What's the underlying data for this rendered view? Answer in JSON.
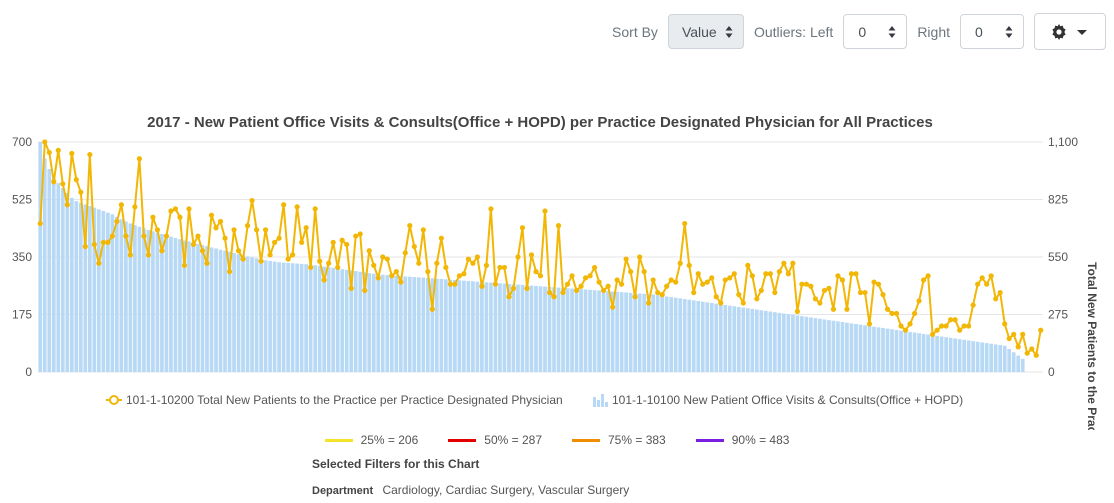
{
  "toolbar": {
    "sort_label": "Sort By",
    "sort_value": "Value",
    "outliers_left_label": "Outliers: Left",
    "outliers_left_value": "0",
    "right_label": "Right",
    "right_value": "0",
    "settings_icon": "gear-icon",
    "settings_caret_icon": "caret-down-icon"
  },
  "colors": {
    "bar": "#b8d9f5",
    "line": "#f2b705",
    "p25": "#f5e22a",
    "p50": "#e50000",
    "p75": "#f08c00",
    "p90": "#7a1fe0"
  },
  "chart_data": {
    "type": "bar+line",
    "title": "2017 - New Patient Office Visits & Consults(Office + HOPD) per Practice Designated Physician for All Practices",
    "y_left": {
      "ticks": [
        "0",
        "175",
        "350",
        "525",
        "700"
      ],
      "range": [
        0,
        700
      ]
    },
    "y_right": {
      "ticks": [
        "0",
        "275",
        "550",
        "825",
        "1,100"
      ],
      "range": [
        0,
        1100
      ],
      "title": "Total New Patients to the Practice"
    },
    "legend": [
      {
        "name": "101-1-10200 Total New Patients to the Practice per Practice Designated Physician",
        "kind": "line"
      },
      {
        "name": "101-1-10100 New Patient Office Visits & Consults(Office + HOPD)",
        "kind": "bar"
      }
    ],
    "series": [
      {
        "name": "101-1-10100 New Patient Office Visits & Consults(Office + HOPD)",
        "axis": "left",
        "kind": "bar",
        "values": [
          700,
          650,
          618,
          590,
          575,
          560,
          545,
          530,
          520,
          515,
          510,
          505,
          500,
          495,
          490,
          485,
          480,
          472,
          465,
          458,
          452,
          447,
          442,
          437,
          432,
          428,
          424,
          420,
          416,
          412,
          408,
          404,
          400,
          397,
          393,
          390,
          386,
          383,
          379,
          376,
          372,
          369,
          366,
          362,
          359,
          356,
          352,
          349,
          346,
          343,
          340,
          338,
          336,
          334,
          333,
          332,
          331,
          330,
          329,
          328,
          327,
          325,
          323,
          321,
          319,
          317,
          315,
          313,
          311,
          309,
          307,
          305,
          303,
          301,
          299,
          297,
          296,
          295,
          294,
          293,
          292,
          291,
          290,
          289,
          288,
          287,
          286,
          285,
          284,
          283,
          282,
          281,
          280,
          279,
          278,
          277,
          276,
          275,
          274,
          273,
          272,
          271,
          270,
          269,
          268,
          267,
          266,
          265,
          264,
          263,
          262,
          261,
          260,
          259,
          258,
          257,
          256,
          255,
          254,
          253,
          252,
          251,
          250,
          249,
          248,
          247,
          246,
          245,
          244,
          243,
          242,
          241,
          240,
          239,
          238,
          237,
          236,
          234,
          232,
          230,
          228,
          226,
          224,
          222,
          220,
          218,
          216,
          214,
          212,
          210,
          208,
          206,
          204,
          202,
          200,
          198,
          196,
          194,
          192,
          190,
          188,
          186,
          184,
          182,
          180,
          178,
          176,
          174,
          172,
          170,
          168,
          166,
          164,
          162,
          160,
          158,
          156,
          154,
          152,
          150,
          148,
          146,
          144,
          142,
          140,
          138,
          136,
          134,
          132,
          130,
          128,
          126,
          124,
          122,
          120,
          118,
          116,
          114,
          112,
          110,
          108,
          106,
          104,
          102,
          100,
          98,
          96,
          94,
          92,
          90,
          88,
          86,
          84,
          82,
          80,
          70,
          60,
          50,
          40
        ]
      },
      {
        "name": "101-1-10200 Total New Patients to the Practice per Practice Designated Physician",
        "axis": "right",
        "kind": "line",
        "values": [
          710,
          1100,
          1050,
          910,
          1060,
          900,
          800,
          1045,
          920,
          860,
          600,
          1040,
          610,
          520,
          620,
          620,
          650,
          720,
          800,
          650,
          560,
          790,
          1020,
          650,
          560,
          740,
          680,
          580,
          650,
          770,
          780,
          740,
          510,
          780,
          610,
          650,
          580,
          520,
          750,
          690,
          720,
          640,
          480,
          680,
          580,
          540,
          700,
          820,
          680,
          530,
          680,
          560,
          620,
          640,
          800,
          540,
          560,
          790,
          620,
          690,
          500,
          780,
          530,
          440,
          520,
          620,
          500,
          630,
          610,
          400,
          650,
          660,
          390,
          580,
          510,
          450,
          550,
          540,
          460,
          480,
          430,
          570,
          700,
          600,
          520,
          680,
          480,
          300,
          520,
          640,
          500,
          420,
          420,
          460,
          470,
          540,
          520,
          550,
          410,
          510,
          780,
          420,
          500,
          500,
          360,
          400,
          550,
          690,
          400,
          560,
          480,
          460,
          770,
          380,
          360,
          700,
          380,
          420,
          460,
          390,
          410,
          450,
          460,
          500,
          430,
          390,
          410,
          310,
          440,
          420,
          540,
          480,
          360,
          550,
          480,
          330,
          440,
          380,
          370,
          410,
          440,
          430,
          520,
          710,
          510,
          380,
          470,
          420,
          430,
          450,
          360,
          330,
          440,
          450,
          470,
          370,
          330,
          510,
          460,
          350,
          390,
          470,
          470,
          380,
          480,
          520,
          470,
          520,
          290,
          420,
          420,
          410,
          350,
          330,
          390,
          400,
          300,
          460,
          440,
          300,
          470,
          470,
          380,
          380,
          230,
          430,
          420,
          370,
          300,
          280,
          280,
          220,
          200,
          230,
          280,
          340,
          440,
          460,
          180,
          200,
          220,
          220,
          250,
          250,
          200,
          220,
          220,
          320,
          420,
          450,
          420,
          460,
          350,
          380,
          230,
          160,
          180,
          120,
          180,
          90,
          110,
          80,
          200
        ]
      }
    ]
  },
  "percentiles": [
    {
      "label": "25% = 206",
      "color": "#f5e22a"
    },
    {
      "label": "50% = 287",
      "color": "#e50000"
    },
    {
      "label": "75% = 383",
      "color": "#f08c00"
    },
    {
      "label": "90% = 483",
      "color": "#7a1fe0"
    }
  ],
  "filters": {
    "title": "Selected Filters for this Chart",
    "department_label": "Department",
    "department_value": "Cardiology, Cardiac Surgery, Vascular Surgery"
  }
}
